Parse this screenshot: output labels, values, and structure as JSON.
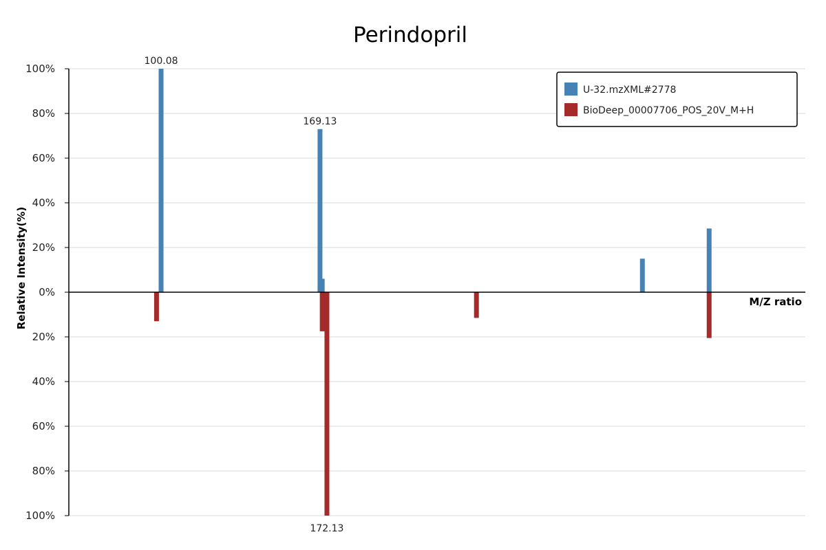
{
  "chart_data": {
    "type": "bar",
    "title": "Perindopril",
    "xlabel": "M/Z ratio",
    "ylabel": "Relative Intensity(%)",
    "ylim": [
      -100,
      100
    ],
    "y_ticks": [
      100,
      80,
      60,
      40,
      20,
      0,
      -20,
      -40,
      -60,
      -80,
      -100
    ],
    "y_tick_labels": [
      "100%",
      "80%",
      "60%",
      "40%",
      "20%",
      "0%",
      "20%",
      "40%",
      "60%",
      "80%",
      "100%"
    ],
    "xlim": [
      60,
      380
    ],
    "grid": true,
    "legend_position": "top-right",
    "series": [
      {
        "name": "U-32.mzXML#2778",
        "color": "#4682b4",
        "direction": "up",
        "points": [
          {
            "mz": 100.08,
            "intensity": 100,
            "label": "100.08"
          },
          {
            "mz": 169.13,
            "intensity": 73,
            "label": "169.13"
          },
          {
            "mz": 170.1,
            "intensity": 6
          },
          {
            "mz": 309.2,
            "intensity": 15
          },
          {
            "mz": 338.2,
            "intensity": 28.5
          }
        ]
      },
      {
        "name": "BioDeep_00007706_POS_20V_M+H",
        "color": "#a52a2a",
        "direction": "down",
        "points": [
          {
            "mz": 98.1,
            "intensity": 13
          },
          {
            "mz": 170.1,
            "intensity": 17.5
          },
          {
            "mz": 172.13,
            "intensity": 100,
            "label": "172.13"
          },
          {
            "mz": 237.1,
            "intensity": 11.5
          },
          {
            "mz": 338.2,
            "intensity": 20.5
          }
        ]
      }
    ]
  }
}
